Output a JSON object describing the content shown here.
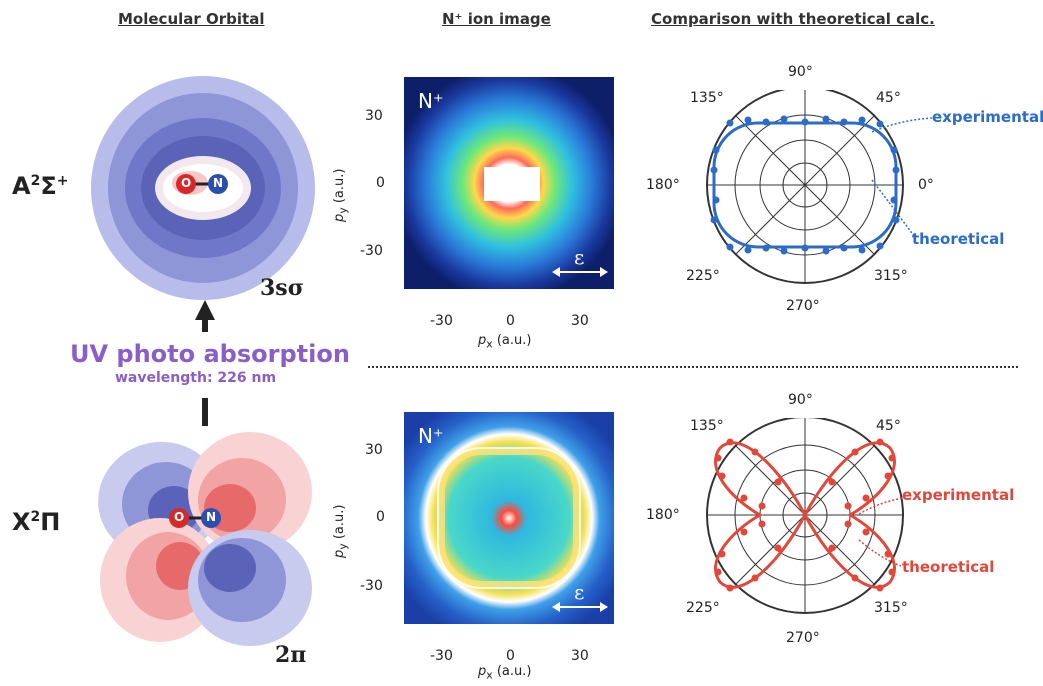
{
  "headers": {
    "molecular_orbital": "Molecular Orbital",
    "ion_image": "N⁺ ion image",
    "comparison": "Comparison with theoretical calc."
  },
  "states": {
    "upper": {
      "term_main": "A",
      "term_sup1": "2",
      "term_sigma": "Σ",
      "term_sup2": "+",
      "orbital": "3sσ"
    },
    "lower": {
      "term_main": "X",
      "term_sup1": "2",
      "term_pi": "Π",
      "orbital": "2π"
    }
  },
  "transition": {
    "title": "UV photo absorption",
    "wavelength": "wavelength: 226 nm"
  },
  "atoms": {
    "oxygen": "O",
    "nitrogen": "N"
  },
  "ion_images": {
    "panel_label": "N⁺",
    "polarization": "ε",
    "x_ticks": [
      "-30",
      "0",
      "30"
    ],
    "y_ticks": [
      "30",
      "0",
      "-30"
    ],
    "x_label_var": "p",
    "x_label_sub": "x",
    "x_label_unit": "(a.u.)",
    "y_label_var": "p",
    "y_label_sub": "y",
    "y_label_unit": "(a.u.)"
  },
  "polar": {
    "angles": [
      "90°",
      "45°",
      "0°",
      "315°",
      "270°",
      "225°",
      "180°",
      "135°"
    ],
    "legend_experimental": "experimental",
    "legend_theoretical": "theoretical"
  },
  "colors": {
    "experimental_upper": "#2a6cc8",
    "experimental_lower": "#e2473a",
    "uv_text": "#8a5ec8"
  }
}
